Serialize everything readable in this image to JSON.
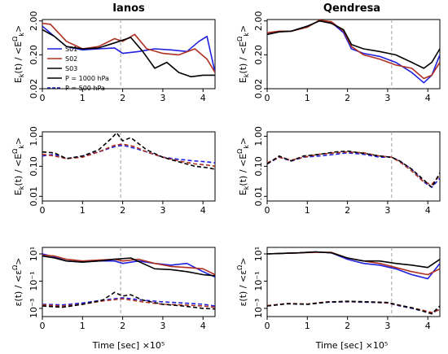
{
  "figure": {
    "x_axis_label": "Time [sec] ×10⁵",
    "time_scale": "×10⁵",
    "columns": [
      "Ianos",
      "Qendresa"
    ]
  },
  "colors": {
    "S01": "#2020e0",
    "S02": "#b03020",
    "S03": "#000000",
    "P1000": "#000000",
    "P500": "#1a1aa0",
    "vline": "#a0a0a0",
    "magenta": "#e040e0"
  },
  "legend": {
    "entries": [
      {
        "label": "S01",
        "color": "#2020e0",
        "style": "solid"
      },
      {
        "label": "S02",
        "color": "#b03020",
        "style": "solid"
      },
      {
        "label": "S03",
        "color": "#000000",
        "style": "solid"
      },
      {
        "label": "P = 1000 hPa",
        "color": "#000000",
        "style": "solid"
      },
      {
        "label": "P = 500 hPa",
        "color": "#1a1aa0",
        "style": "dashed"
      }
    ]
  },
  "chart_data": [
    {
      "type": "line",
      "title": "Ianos",
      "ylabel": "E_k(t) / <E_k^Ω>",
      "yscale": "log",
      "levels": "P = 1000 hPa",
      "xlim": [
        0,
        4.3
      ],
      "ylim": [
        0.02,
        2.2
      ],
      "xticks": [
        0,
        1,
        2,
        3,
        4
      ],
      "yticks": [
        0.02,
        0.2,
        2.0
      ],
      "ytick_labels": [
        "0.02",
        "0.20",
        "2.00"
      ],
      "vline": 1.95,
      "series": [
        {
          "name": "S01",
          "x": [
            0,
            0.3,
            0.6,
            1.0,
            1.4,
            1.8,
            2.0,
            2.4,
            2.8,
            3.2,
            3.6,
            3.9,
            4.1,
            4.3
          ],
          "y": [
            1.4,
            0.7,
            0.35,
            0.28,
            0.3,
            0.32,
            0.22,
            0.25,
            0.3,
            0.28,
            0.25,
            0.5,
            0.7,
            0.06
          ]
        },
        {
          "name": "S02",
          "x": [
            0,
            0.2,
            0.6,
            1.0,
            1.4,
            1.8,
            2.0,
            2.3,
            2.6,
            3.0,
            3.4,
            3.8,
            4.1,
            4.3
          ],
          "y": [
            1.7,
            1.6,
            0.5,
            0.3,
            0.35,
            0.6,
            0.5,
            0.8,
            0.3,
            0.22,
            0.2,
            0.3,
            0.15,
            0.06
          ]
        },
        {
          "name": "S03",
          "x": [
            0,
            0.3,
            0.6,
            1.0,
            1.4,
            1.8,
            2.2,
            2.5,
            2.8,
            3.1,
            3.4,
            3.7,
            4.0,
            4.3
          ],
          "y": [
            1.1,
            0.7,
            0.35,
            0.3,
            0.32,
            0.45,
            0.65,
            0.25,
            0.08,
            0.12,
            0.06,
            0.045,
            0.05,
            0.05
          ]
        }
      ]
    },
    {
      "type": "line",
      "title": "Qendresa",
      "ylabel": "E_k(t) / <E_k^Ω>",
      "yscale": "log",
      "levels": "P = 1000 hPa",
      "xlim": [
        0,
        4.3
      ],
      "ylim": [
        0.02,
        2.2
      ],
      "xticks": [
        0,
        1,
        2,
        3,
        4
      ],
      "yticks": [
        0.02,
        0.2,
        2.0
      ],
      "ytick_labels": [
        "0.02",
        "0.20",
        "2.00"
      ],
      "vline": 3.1,
      "series": [
        {
          "name": "S01",
          "x": [
            0,
            0.3,
            0.6,
            1.0,
            1.3,
            1.6,
            1.9,
            2.1,
            2.4,
            2.8,
            3.2,
            3.6,
            3.9,
            4.1,
            4.3
          ],
          "y": [
            0.8,
            1.0,
            1.0,
            1.4,
            2.0,
            1.8,
            0.9,
            0.3,
            0.22,
            0.18,
            0.12,
            0.06,
            0.03,
            0.05,
            0.2
          ]
        },
        {
          "name": "S02",
          "x": [
            0,
            0.3,
            0.6,
            1.0,
            1.3,
            1.6,
            1.9,
            2.1,
            2.4,
            2.8,
            3.2,
            3.6,
            3.9,
            4.1,
            4.3
          ],
          "y": [
            0.9,
            1.0,
            1.0,
            1.3,
            2.1,
            1.9,
            1.0,
            0.35,
            0.2,
            0.15,
            0.1,
            0.08,
            0.04,
            0.05,
            0.12
          ]
        },
        {
          "name": "S03",
          "x": [
            0,
            0.3,
            0.6,
            1.0,
            1.3,
            1.6,
            1.9,
            2.1,
            2.4,
            2.8,
            3.2,
            3.6,
            3.9,
            4.1,
            4.3
          ],
          "y": [
            0.8,
            0.95,
            1.0,
            1.4,
            2.0,
            1.7,
            1.1,
            0.4,
            0.3,
            0.25,
            0.2,
            0.12,
            0.08,
            0.12,
            0.3
          ]
        }
      ]
    },
    {
      "type": "line",
      "ylabel": "E_k(t) / <E_k^Ω>",
      "yscale": "log",
      "levels": "P = 500 hPa",
      "xlim": [
        0,
        4.3
      ],
      "ylim": [
        0.007,
        1.4
      ],
      "xticks": [
        0,
        1,
        2,
        3,
        4
      ],
      "yticks": [
        0.01,
        0.1,
        1.0
      ],
      "ytick_labels": [
        "0.01",
        "0.10",
        "1.00"
      ],
      "vline": 1.95,
      "series": [
        {
          "name": "S01",
          "x": [
            0,
            0.3,
            0.6,
            1.0,
            1.4,
            1.8,
            2.0,
            2.3,
            2.6,
            3.0,
            3.4,
            3.8,
            4.1,
            4.3
          ],
          "y": [
            0.22,
            0.25,
            0.18,
            0.22,
            0.3,
            0.45,
            0.5,
            0.4,
            0.3,
            0.2,
            0.17,
            0.15,
            0.14,
            0.13
          ]
        },
        {
          "name": "S02",
          "x": [
            0,
            0.3,
            0.6,
            1.0,
            1.4,
            1.8,
            2.0,
            2.3,
            2.6,
            3.0,
            3.4,
            3.8,
            4.1,
            4.3
          ],
          "y": [
            0.25,
            0.22,
            0.18,
            0.2,
            0.3,
            0.5,
            0.55,
            0.45,
            0.3,
            0.2,
            0.15,
            0.12,
            0.11,
            0.1
          ]
        },
        {
          "name": "S03",
          "x": [
            0,
            0.3,
            0.6,
            1.0,
            1.4,
            1.7,
            1.85,
            2.0,
            2.2,
            2.6,
            3.0,
            3.4,
            3.8,
            4.1,
            4.3
          ],
          "y": [
            0.3,
            0.28,
            0.18,
            0.22,
            0.35,
            0.8,
            1.3,
            0.7,
            0.9,
            0.35,
            0.2,
            0.14,
            0.1,
            0.09,
            0.08
          ]
        }
      ]
    },
    {
      "type": "line",
      "ylabel": "E_k(t) / <E_k^Ω>",
      "yscale": "log",
      "levels": "P = 500 hPa",
      "xlim": [
        0,
        4.3
      ],
      "ylim": [
        0.007,
        1.4
      ],
      "xticks": [
        0,
        1,
        2,
        3,
        4
      ],
      "yticks": [
        0.01,
        0.1,
        1.0
      ],
      "ytick_labels": [
        "0.01",
        "0.10",
        "1.00"
      ],
      "vline": 3.1,
      "series": [
        {
          "name": "S01",
          "x": [
            0,
            0.3,
            0.6,
            0.9,
            1.3,
            1.7,
            2.0,
            2.4,
            2.8,
            3.1,
            3.3,
            3.6,
            3.9,
            4.1,
            4.3
          ],
          "y": [
            0.12,
            0.2,
            0.15,
            0.2,
            0.22,
            0.25,
            0.28,
            0.25,
            0.2,
            0.2,
            0.15,
            0.08,
            0.03,
            0.02,
            0.04
          ]
        },
        {
          "name": "S02",
          "x": [
            0,
            0.3,
            0.6,
            0.9,
            1.3,
            1.7,
            2.0,
            2.4,
            2.8,
            3.1,
            3.3,
            3.6,
            3.9,
            4.1,
            4.3
          ],
          "y": [
            0.13,
            0.2,
            0.16,
            0.2,
            0.25,
            0.28,
            0.3,
            0.28,
            0.22,
            0.2,
            0.14,
            0.07,
            0.03,
            0.025,
            0.05
          ]
        },
        {
          "name": "S03",
          "x": [
            0,
            0.3,
            0.6,
            0.9,
            1.3,
            1.7,
            2.0,
            2.4,
            2.8,
            3.1,
            3.3,
            3.6,
            3.9,
            4.1,
            4.3
          ],
          "y": [
            0.12,
            0.22,
            0.15,
            0.22,
            0.25,
            0.3,
            0.32,
            0.27,
            0.22,
            0.2,
            0.15,
            0.08,
            0.035,
            0.02,
            0.06
          ]
        }
      ]
    },
    {
      "type": "line",
      "ylabel": "ε(t) / <ε^Ω>",
      "yscale": "log",
      "xlim": [
        0,
        4.3
      ],
      "ylim": [
        0.00025,
        30
      ],
      "xticks": [
        0,
        1,
        2,
        3,
        4
      ],
      "yticks": [
        0.001,
        0.1,
        10
      ],
      "ytick_labels": [
        "10⁻³",
        "10⁻¹",
        "10¹"
      ],
      "vline": 1.95,
      "series": [
        {
          "name": "S01",
          "level": "P = 1000 hPa",
          "x": [
            0,
            0.3,
            0.6,
            1.0,
            1.4,
            1.8,
            2.0,
            2.4,
            2.8,
            3.2,
            3.6,
            4.0,
            4.3
          ],
          "y": [
            10,
            6,
            3,
            2.5,
            3,
            3,
            2,
            3,
            2,
            1.5,
            2,
            0.5,
            0.2
          ]
        },
        {
          "name": "S02",
          "level": "P = 1000 hPa",
          "x": [
            0,
            0.3,
            0.6,
            1.0,
            1.4,
            1.8,
            2.0,
            2.4,
            2.8,
            3.2,
            3.6,
            4.0,
            4.3
          ],
          "y": [
            8,
            7,
            4,
            3,
            3.5,
            4,
            3,
            4,
            2,
            1.2,
            1,
            0.8,
            0.3
          ]
        },
        {
          "name": "S03",
          "level": "P = 1000 hPa",
          "x": [
            0,
            0.3,
            0.6,
            1.0,
            1.4,
            1.8,
            2.2,
            2.5,
            2.8,
            3.2,
            3.6,
            4.0,
            4.3
          ],
          "y": [
            7,
            5,
            3,
            2.5,
            3,
            4,
            5,
            2,
            0.8,
            0.7,
            0.5,
            0.3,
            0.25
          ]
        },
        {
          "name": "S01",
          "level": "P = 500 hPa",
          "x": [
            0,
            0.5,
            1.0,
            1.5,
            2.0,
            2.5,
            3.0,
            3.5,
            4.0,
            4.3
          ],
          "y": [
            0.002,
            0.0018,
            0.0025,
            0.004,
            0.006,
            0.004,
            0.003,
            0.0025,
            0.002,
            0.0015
          ]
        },
        {
          "name": "S02",
          "level": "P = 500 hPa",
          "x": [
            0,
            0.5,
            1.0,
            1.5,
            2.0,
            2.5,
            3.0,
            3.5,
            4.0,
            4.3
          ],
          "y": [
            0.0018,
            0.0015,
            0.002,
            0.0035,
            0.005,
            0.003,
            0.002,
            0.0018,
            0.0015,
            0.0012
          ]
        },
        {
          "name": "S03",
          "level": "P = 500 hPa",
          "x": [
            0,
            0.5,
            1.0,
            1.5,
            1.8,
            2.0,
            2.2,
            2.5,
            3.0,
            3.5,
            4.0,
            4.3
          ],
          "y": [
            0.0015,
            0.0012,
            0.002,
            0.004,
            0.015,
            0.008,
            0.01,
            0.004,
            0.002,
            0.0015,
            0.001,
            0.0009
          ]
        }
      ]
    },
    {
      "type": "line",
      "ylabel": "ε(t) / <ε^Ω>",
      "yscale": "log",
      "xlim": [
        0,
        4.3
      ],
      "ylim": [
        0.00025,
        30
      ],
      "xticks": [
        0,
        1,
        2,
        3,
        4
      ],
      "yticks": [
        0.001,
        0.1,
        10
      ],
      "ytick_labels": [
        "10⁻³",
        "10⁻¹",
        "10¹"
      ],
      "vline": 3.1,
      "series": [
        {
          "name": "S01",
          "level": "P = 1000 hPa",
          "x": [
            0,
            0.4,
            0.8,
            1.2,
            1.6,
            2.0,
            2.4,
            2.8,
            3.2,
            3.6,
            4.0,
            4.3
          ],
          "y": [
            10,
            11,
            12,
            14,
            12,
            4,
            2,
            1.5,
            0.8,
            0.3,
            0.15,
            2
          ]
        },
        {
          "name": "S02",
          "level": "P = 1000 hPa",
          "x": [
            0,
            0.4,
            0.8,
            1.2,
            1.6,
            2.0,
            2.4,
            2.8,
            3.2,
            3.6,
            4.0,
            4.3
          ],
          "y": [
            10,
            11,
            12,
            13,
            13,
            5,
            3,
            2,
            1,
            0.5,
            0.3,
            0.8
          ]
        },
        {
          "name": "S03",
          "level": "P = 1000 hPa",
          "x": [
            0,
            0.4,
            0.8,
            1.2,
            1.6,
            2.0,
            2.4,
            2.8,
            3.2,
            3.6,
            4.0,
            4.3
          ],
          "y": [
            10,
            11,
            12,
            14,
            12,
            5,
            3,
            3,
            2,
            1.5,
            1,
            4
          ]
        },
        {
          "name": "S01",
          "level": "P = 500 hPa",
          "x": [
            0,
            0.5,
            1.0,
            1.5,
            2.0,
            2.5,
            3.0,
            3.3,
            3.6,
            3.9,
            4.1,
            4.3
          ],
          "y": [
            0.0015,
            0.0022,
            0.002,
            0.0028,
            0.003,
            0.0028,
            0.0025,
            0.0015,
            0.001,
            0.0006,
            0.0004,
            0.001
          ]
        },
        {
          "name": "S02",
          "level": "P = 500 hPa",
          "x": [
            0,
            0.5,
            1.0,
            1.5,
            2.0,
            2.5,
            3.0,
            3.3,
            3.6,
            3.9,
            4.1,
            4.3
          ],
          "y": [
            0.0016,
            0.0023,
            0.0021,
            0.003,
            0.0032,
            0.003,
            0.0025,
            0.0016,
            0.0011,
            0.0007,
            0.0005,
            0.0008
          ]
        },
        {
          "name": "S03",
          "level": "P = 500 hPa",
          "x": [
            0,
            0.5,
            1.0,
            1.5,
            2.0,
            2.5,
            3.0,
            3.3,
            3.6,
            3.9,
            4.1,
            4.3
          ],
          "y": [
            0.0015,
            0.0022,
            0.002,
            0.0029,
            0.0033,
            0.003,
            0.0027,
            0.0017,
            0.0011,
            0.0006,
            0.0004,
            0.0015
          ]
        }
      ]
    }
  ]
}
